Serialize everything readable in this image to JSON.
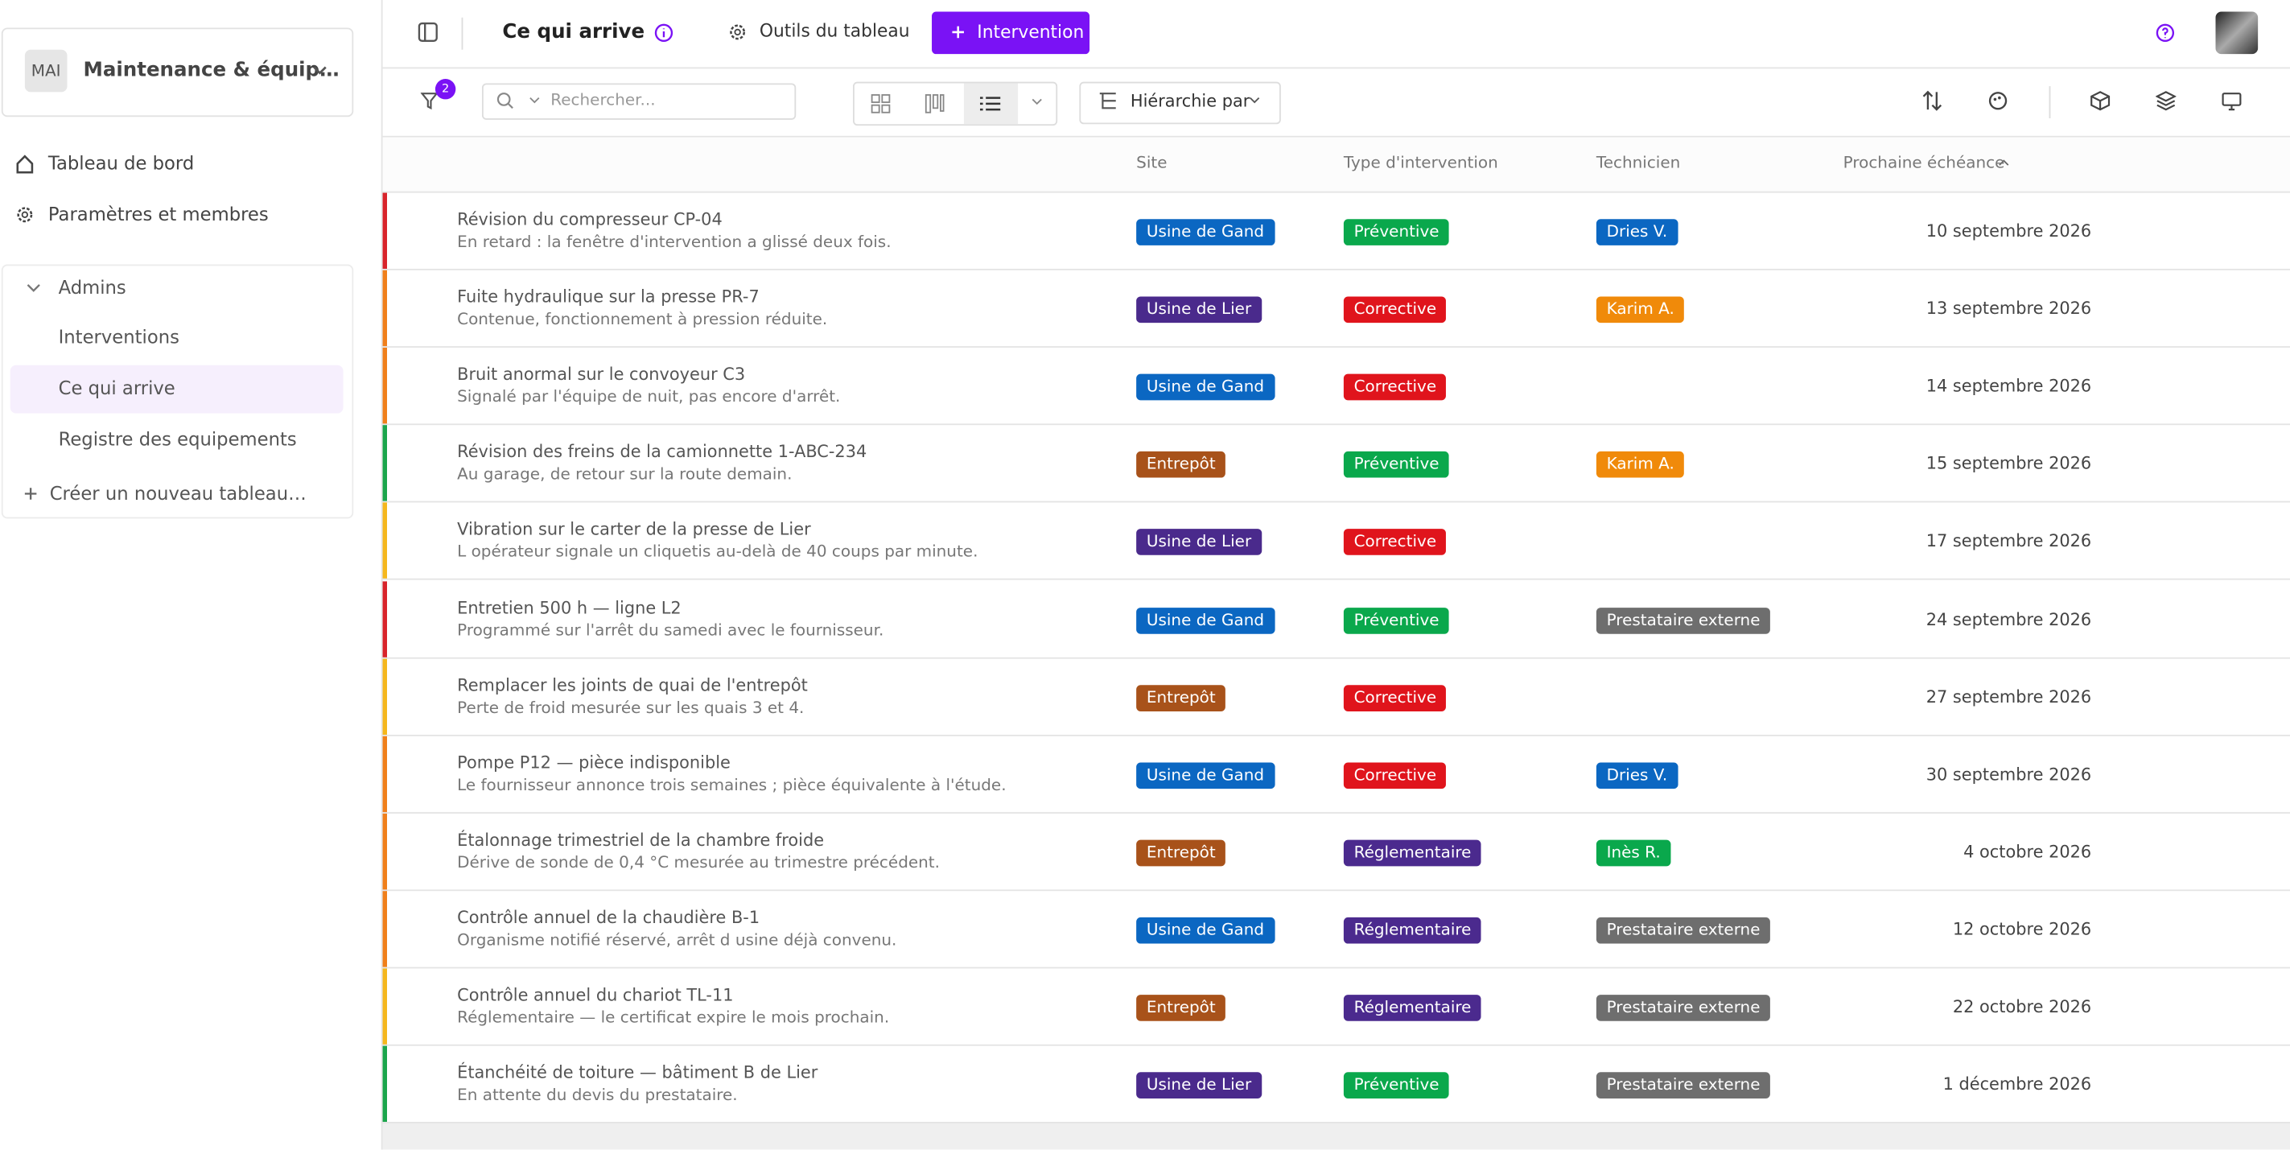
{
  "sidebar": {
    "workspace_badge": "MAI",
    "workspace_name": "Maintenance & équip…",
    "nav": [
      "Tableau de bord",
      "Paramètres et membres"
    ],
    "group": "Admins",
    "group_items": [
      "Interventions",
      "Ce qui arrive",
      "Registre des equipements"
    ],
    "create": "Créer un nouveau tableau…"
  },
  "topbar": {
    "title": "Ce qui arrive",
    "tools": "Outils du tableau",
    "button": "Intervention"
  },
  "toolbar": {
    "filter_count": "2",
    "search_placeholder": "Rechercher...",
    "hierarchy": "Hiérarchie par"
  },
  "table": {
    "headers": [
      "Site",
      "Type d'intervention",
      "Technicien",
      "Prochaine échéance"
    ],
    "rows": [
      {
        "accent": "#d8232a",
        "title": "Révision du compresseur CP-04",
        "subtitle": "En retard : la fenêtre d'intervention a glissé deux fois.",
        "site": {
          "label": "Usine de Gand",
          "color": "#0b67c2"
        },
        "type": {
          "label": "Préventive",
          "color": "#0aa84c"
        },
        "technician": {
          "label": "Dries V.",
          "color": "#0b67c2"
        },
        "due": "10 septembre 2026"
      },
      {
        "accent": "#f07f1a",
        "title": "Fuite hydraulique sur la presse PR-7",
        "subtitle": "Contenue, fonctionnement à pression réduite.",
        "site": {
          "label": "Usine de Lier",
          "color": "#4a2a8c"
        },
        "type": {
          "label": "Corrective",
          "color": "#e0141c"
        },
        "technician": {
          "label": "Karim A.",
          "color": "#f08a0a"
        },
        "due": "13 septembre 2026"
      },
      {
        "accent": "#f07f1a",
        "title": "Bruit anormal sur le convoyeur C3",
        "subtitle": "Signalé par l'équipe de nuit, pas encore d'arrêt.",
        "site": {
          "label": "Usine de Gand",
          "color": "#0b67c2"
        },
        "type": {
          "label": "Corrective",
          "color": "#e0141c"
        },
        "technician": null,
        "due": "14 septembre 2026"
      },
      {
        "accent": "#1aa54b",
        "title": "Révision des freins de la camionnette 1-ABC-234",
        "subtitle": "Au garage, de retour sur la route demain.",
        "site": {
          "label": "Entrepôt",
          "color": "#a8521a"
        },
        "type": {
          "label": "Préventive",
          "color": "#0aa84c"
        },
        "technician": {
          "label": "Karim A.",
          "color": "#f08a0a"
        },
        "due": "15 septembre 2026"
      },
      {
        "accent": "#f5b71c",
        "title": "Vibration sur le carter de la presse de Lier",
        "subtitle": "L opérateur signale un cliquetis au-delà de 40 coups par minute.",
        "site": {
          "label": "Usine de Lier",
          "color": "#4a2a8c"
        },
        "type": {
          "label": "Corrective",
          "color": "#e0141c"
        },
        "technician": null,
        "due": "17 septembre 2026"
      },
      {
        "accent": "#d8232a",
        "title": "Entretien 500 h — ligne L2",
        "subtitle": "Programmé sur l'arrêt du samedi avec le fournisseur.",
        "site": {
          "label": "Usine de Gand",
          "color": "#0b67c2"
        },
        "type": {
          "label": "Préventive",
          "color": "#0aa84c"
        },
        "technician": {
          "label": "Prestataire externe",
          "color": "#6e6e6e"
        },
        "due": "24 septembre 2026"
      },
      {
        "accent": "#f5b71c",
        "title": "Remplacer les joints de quai de l'entrepôt",
        "subtitle": "Perte de froid mesurée sur les quais 3 et 4.",
        "site": {
          "label": "Entrepôt",
          "color": "#a8521a"
        },
        "type": {
          "label": "Corrective",
          "color": "#e0141c"
        },
        "technician": null,
        "due": "27 septembre 2026"
      },
      {
        "accent": "#f07f1a",
        "title": "Pompe P12 — pièce indisponible",
        "subtitle": "Le fournisseur annonce trois semaines ; pièce équivalente à l'étude.",
        "site": {
          "label": "Usine de Gand",
          "color": "#0b67c2"
        },
        "type": {
          "label": "Corrective",
          "color": "#e0141c"
        },
        "technician": {
          "label": "Dries V.",
          "color": "#0b67c2"
        },
        "due": "30 septembre 2026"
      },
      {
        "accent": "#f07f1a",
        "title": "Étalonnage trimestriel de la chambre froide",
        "subtitle": "Dérive de sonde de 0,4 °C mesurée au trimestre précédent.",
        "site": {
          "label": "Entrepôt",
          "color": "#a8521a"
        },
        "type": {
          "label": "Réglementaire",
          "color": "#4b2a8e"
        },
        "technician": {
          "label": "Inès R.",
          "color": "#0aa84c"
        },
        "due": "4 octobre 2026"
      },
      {
        "accent": "#f07f1a",
        "title": "Contrôle annuel de la chaudière B-1",
        "subtitle": "Organisme notifié réservé, arrêt d usine déjà convenu.",
        "site": {
          "label": "Usine de Gand",
          "color": "#0b67c2"
        },
        "type": {
          "label": "Réglementaire",
          "color": "#4b2a8e"
        },
        "technician": {
          "label": "Prestataire externe",
          "color": "#6e6e6e"
        },
        "due": "12 octobre 2026"
      },
      {
        "accent": "#f5b71c",
        "title": "Contrôle annuel du chariot TL-11",
        "subtitle": "Réglementaire — le certificat expire le mois prochain.",
        "site": {
          "label": "Entrepôt",
          "color": "#a8521a"
        },
        "type": {
          "label": "Réglementaire",
          "color": "#4b2a8e"
        },
        "technician": {
          "label": "Prestataire externe",
          "color": "#6e6e6e"
        },
        "due": "22 octobre 2026"
      },
      {
        "accent": "#1aa54b",
        "title": "Étanchéité de toiture — bâtiment B de Lier",
        "subtitle": "En attente du devis du prestataire.",
        "site": {
          "label": "Usine de Lier",
          "color": "#4a2a8c"
        },
        "type": {
          "label": "Préventive",
          "color": "#0aa84c"
        },
        "technician": {
          "label": "Prestataire externe",
          "color": "#6e6e6e"
        },
        "due": "1 décembre 2026"
      }
    ]
  }
}
